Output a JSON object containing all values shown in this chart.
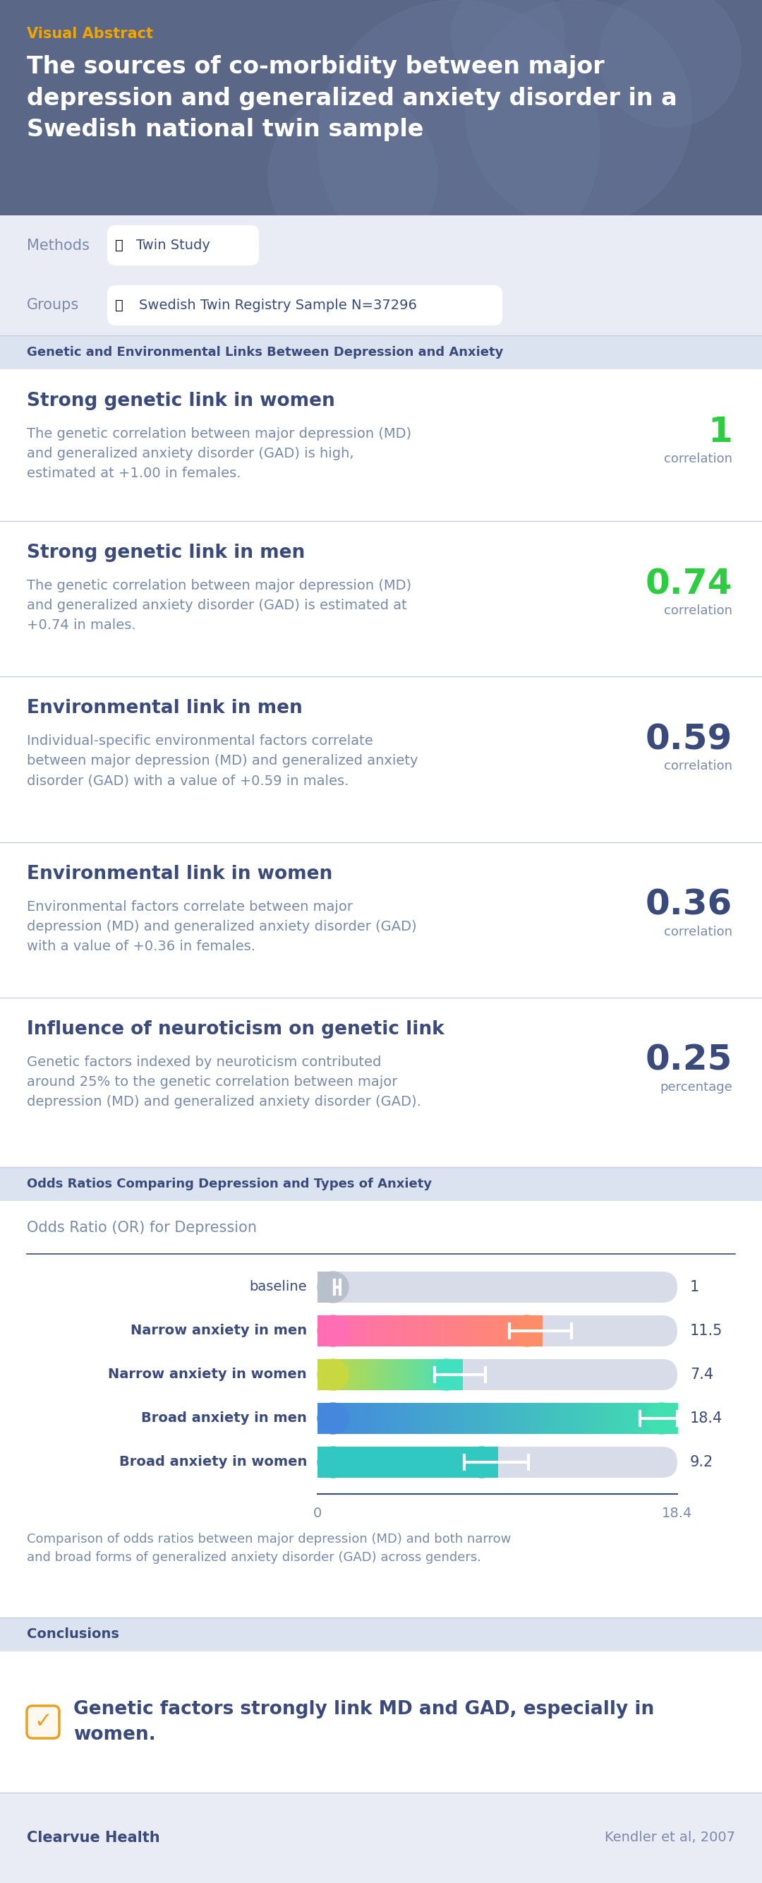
{
  "visual_abstract_label": "Visual Abstract",
  "title": "The sources of co-morbidity between major\ndepression and generalized anxiety disorder in a\nSwedish national twin sample",
  "header_bg": "#5b6786",
  "header_text_color": "#ffffff",
  "visual_abstract_color": "#f0a500",
  "methods_label": "Methods",
  "methods_tag": "Twin Study",
  "groups_label": "Groups",
  "groups_tag": "Swedish Twin Registry Sample N=37296",
  "section1_header": "Genetic and Environmental Links Between Depression and Anxiety",
  "section1_header_bg": "#dce3f0",
  "findings": [
    {
      "title": "Strong genetic link in women",
      "body": "The genetic correlation between major depression (MD)\nand generalized anxiety disorder (GAD) is high,\nestimated at +1.00 in females.",
      "value": "1",
      "unit": "correlation",
      "value_color": "#2ecc40"
    },
    {
      "title": "Strong genetic link in men",
      "body": "The genetic correlation between major depression (MD)\nand generalized anxiety disorder (GAD) is estimated at\n+0.74 in males.",
      "value": "0.74",
      "unit": "correlation",
      "value_color": "#2ecc40"
    },
    {
      "title": "Environmental link in men",
      "body": "Individual-specific environmental factors correlate\nbetween major depression (MD) and generalized anxiety\ndisorder (GAD) with a value of +0.59 in males.",
      "value": "0.59",
      "unit": "correlation",
      "value_color": "#3a4a7a"
    },
    {
      "title": "Environmental link in women",
      "body": "Environmental factors correlate between major\ndepression (MD) and generalized anxiety disorder (GAD)\nwith a value of +0.36 in females.",
      "value": "0.36",
      "unit": "correlation",
      "value_color": "#3a4a7a"
    },
    {
      "title": "Influence of neuroticism on genetic link",
      "body": "Genetic factors indexed by neuroticism contributed\naround 25% to the genetic correlation between major\ndepression (MD) and generalized anxiety disorder (GAD).",
      "value": "0.25",
      "unit": "percentage",
      "value_color": "#3a4a7a"
    }
  ],
  "section2_header": "Odds Ratios Comparing Depression and Types of Anxiety",
  "section2_header_bg": "#dce3f0",
  "or_title": "Odds Ratio (OR) for Depression",
  "bar_data": [
    {
      "label": "baseline",
      "value": 1.0,
      "ci_low": 0.85,
      "ci_high": 1.15,
      "color_left": "#b8c0cc",
      "color_right": "#b8c0cc",
      "bold": false,
      "display_value": "1"
    },
    {
      "label": "Narrow anxiety in men",
      "value": 11.5,
      "ci_low": 9.8,
      "ci_high": 13.0,
      "color_left": "#ff6eb4",
      "color_right": "#ff8c69",
      "bold": true,
      "display_value": "11.5"
    },
    {
      "label": "Narrow anxiety in women",
      "value": 7.4,
      "ci_low": 6.0,
      "ci_high": 8.6,
      "color_left": "#c8d840",
      "color_right": "#40e0c0",
      "bold": true,
      "display_value": "7.4"
    },
    {
      "label": "Broad anxiety in men",
      "value": 18.4,
      "ci_low": 16.5,
      "ci_high": 18.4,
      "color_left": "#4488dd",
      "color_right": "#40e0b0",
      "bold": true,
      "display_value": "18.4"
    },
    {
      "label": "Broad anxiety in women",
      "value": 9.2,
      "ci_low": 7.5,
      "ci_high": 10.8,
      "color_left": "#30c8c0",
      "color_right": "#30c8c0",
      "bold": true,
      "display_value": "9.2"
    }
  ],
  "bar_note": "Comparison of odds ratios between major depression (MD) and both narrow\nand broad forms of generalized anxiety disorder (GAD) across genders.",
  "conclusion_header": "Conclusions",
  "conclusion_header_bg": "#dce3f0",
  "conclusion_text": "Genetic factors strongly link MD and GAD, especially in\nwomen.",
  "footer_left": "Clearvue Health",
  "footer_right": "Kendler et al, 2007",
  "bg_light": "#eaecf5",
  "bg_white": "#ffffff",
  "text_dark": "#3a4a7a",
  "text_medium": "#7a8aaa"
}
